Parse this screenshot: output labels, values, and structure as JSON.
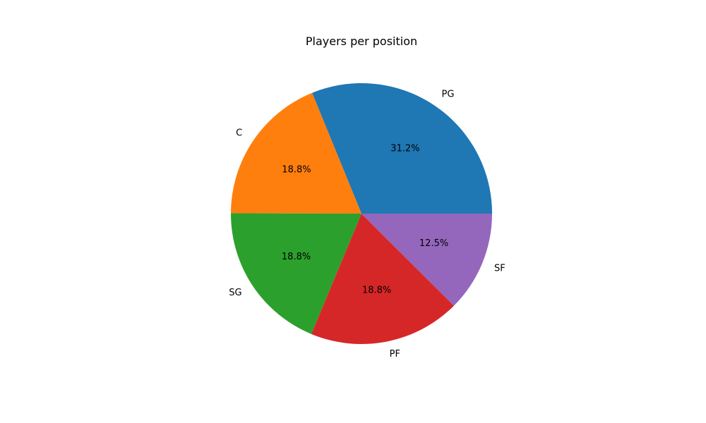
{
  "chart_data": {
    "type": "pie",
    "title": "Players per position",
    "categories": [
      "PG",
      "C",
      "SG",
      "PF",
      "SF"
    ],
    "values": [
      31.2,
      18.8,
      18.8,
      18.8,
      12.5
    ],
    "value_labels": [
      "31.2%",
      "18.8%",
      "18.8%",
      "18.8%",
      "12.5%"
    ],
    "colors": [
      "#1f77b4",
      "#ff7f0e",
      "#2ca02c",
      "#d62728",
      "#9467bd"
    ],
    "start_angle_deg": 0,
    "direction": "counterclockwise"
  }
}
